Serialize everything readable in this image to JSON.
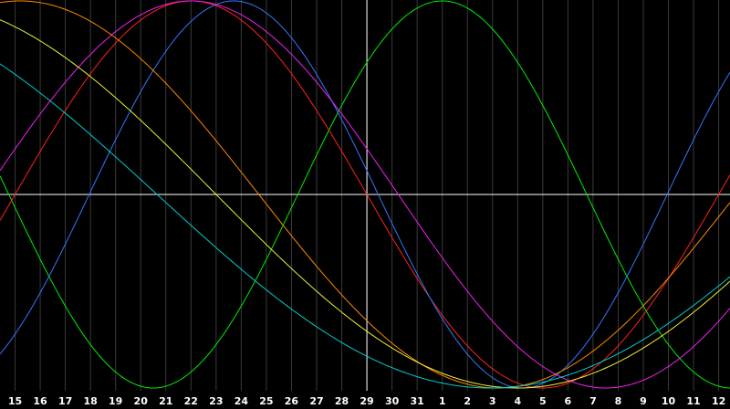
{
  "chart_data": {
    "type": "line",
    "title": "",
    "xlabel": "",
    "ylabel": "",
    "ylim": [
      -1,
      1
    ],
    "grid": true,
    "legend": "none",
    "x_ticks": [
      "15",
      "16",
      "17",
      "18",
      "19",
      "20",
      "21",
      "22",
      "23",
      "24",
      "25",
      "26",
      "27",
      "28",
      "29",
      "30",
      "31",
      "1",
      "2",
      "3",
      "4",
      "5",
      "6",
      "7",
      "8",
      "9",
      "10",
      "11",
      "12"
    ],
    "x_range": [
      14.4,
      43.45
    ],
    "cursor_x": "29",
    "series": [
      {
        "color": "#00ee00",
        "period_days": 23,
        "peak_x": 32.0
      },
      {
        "color": "#ff2020",
        "period_days": 28,
        "peak_x": 22.0
      },
      {
        "color": "#3377ff",
        "period_days": 23,
        "peak_x": 23.7
      },
      {
        "color": "#ee22ee",
        "period_days": 33,
        "peak_x": 22.0
      },
      {
        "color": "#ff8800",
        "period_days": 38,
        "peak_x": 15.2
      },
      {
        "color": "#eeee33",
        "period_days": 48,
        "peak_x": 11.0
      },
      {
        "color": "#00cccc",
        "period_days": 53,
        "peak_x": 7.4
      }
    ],
    "colors": {
      "background": "#000000",
      "grid": "#3a3a3a",
      "axis": "#ffffff",
      "tick_text": "#ffffff"
    }
  }
}
